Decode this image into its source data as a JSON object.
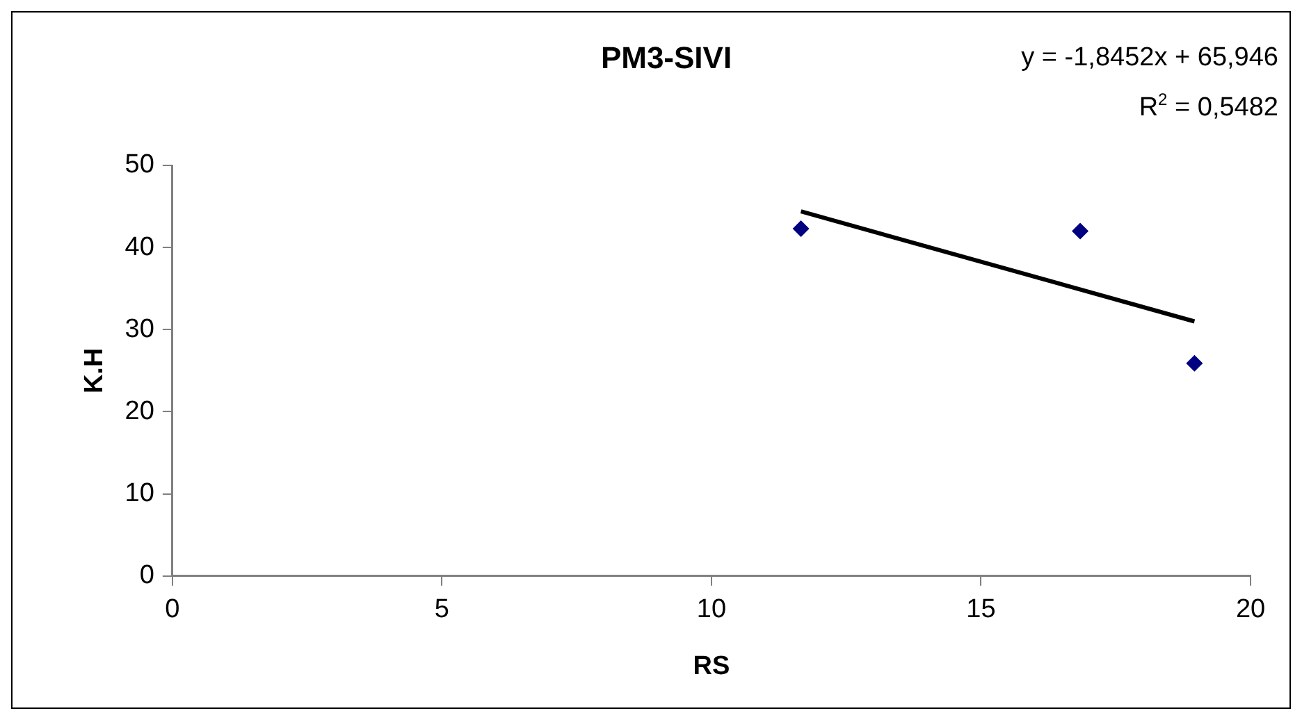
{
  "chart_data": {
    "type": "scatter",
    "title": "PM3-SIVI",
    "xlabel": "RS",
    "ylabel": "K.H",
    "annotations": [
      "y = -1,8452x + 65,946",
      "R$^{2}$ = 0,5482"
    ],
    "series": [
      {
        "color": "#000080",
        "x": [
          11.66,
          16.84,
          18.96
        ],
        "values": [
          42.3,
          42.0,
          25.9
        ],
        "marker": "diamond"
      },
      {
        "type": "line",
        "color": "#000000",
        "x": [
          11.66,
          18.96
        ],
        "values": [
          44.4,
          31.0
        ],
        "marker": "none",
        "line_style": "solid"
      }
    ],
    "xlim": [
      0,
      20
    ],
    "xticks": [
      0,
      5,
      10,
      15,
      20
    ],
    "ylim": [
      0,
      50
    ],
    "yticks": [
      0,
      10,
      20,
      30,
      40,
      50
    ],
    "grid": false,
    "legend": false
  }
}
